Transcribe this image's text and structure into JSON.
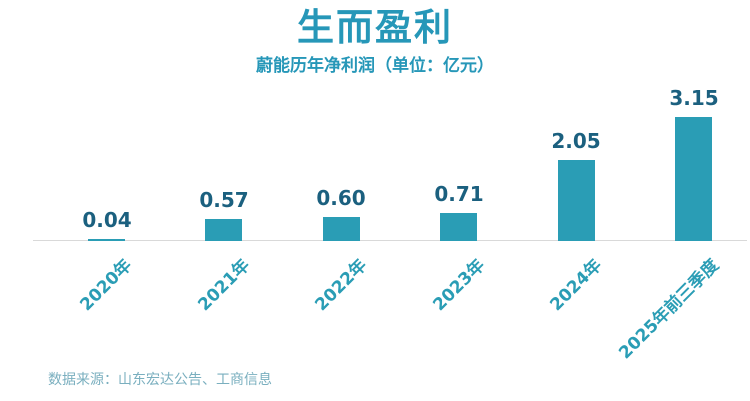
{
  "chart_data": {
    "type": "bar",
    "title": "生而盈利",
    "subtitle": "蔚能历年净利润（单位：亿元）",
    "categories": [
      "2020年",
      "2021年",
      "2022年",
      "2023年",
      "2024年",
      "2025年前三季度"
    ],
    "values": [
      0.04,
      0.57,
      0.6,
      0.71,
      2.05,
      3.15
    ],
    "value_labels": [
      "0.04",
      "0.57",
      "0.60",
      "0.71",
      "2.05",
      "3.15"
    ],
    "xlabel": "",
    "ylabel": "",
    "ylim": [
      0,
      3.5
    ],
    "grid": false,
    "legend": "none",
    "source_note": "数据来源：山东宏达公告、工商信息",
    "colors": {
      "bar": "#2A9DB5",
      "title": "#2697B8",
      "subtitle": "#2697B8",
      "axis_label": "#2A9DB5",
      "value_label": "#1B607F",
      "axis_line": "#D9D9D9",
      "source": "#7AAFBF"
    }
  }
}
